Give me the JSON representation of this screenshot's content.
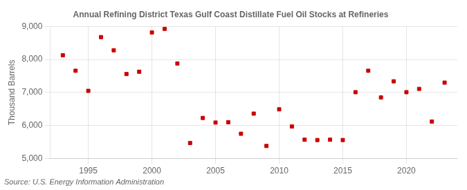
{
  "chart_data": {
    "type": "scatter",
    "title": "Annual Refining District Texas Gulf Coast Distillate Fuel Oil Stocks at Refineries",
    "ylabel": "Thousand Barrels",
    "annotations": [
      "Source: U.S. Energy Information Administration"
    ],
    "x": [
      1993,
      1994,
      1995,
      1996,
      1997,
      1998,
      1999,
      2000,
      2001,
      2002,
      2003,
      2004,
      2005,
      2006,
      2007,
      2008,
      2009,
      2010,
      2011,
      2012,
      2013,
      2014,
      2015,
      2016,
      2017,
      2018,
      2019,
      2020,
      2021,
      2022,
      2023
    ],
    "values": [
      8130,
      7660,
      7050,
      8680,
      8280,
      7560,
      7630,
      8820,
      8930,
      7880,
      5470,
      6230,
      6090,
      6100,
      5750,
      6360,
      5380,
      6490,
      5970,
      5570,
      5560,
      5570,
      5560,
      7010,
      7660,
      6850,
      7340,
      7010,
      7110,
      6120,
      7300
    ],
    "color": "#cc0000",
    "marker": "square",
    "xlim": [
      1992,
      2024
    ],
    "xticks": [
      1995,
      2000,
      2005,
      2010,
      2015,
      2020
    ],
    "ylim": [
      5000,
      9000
    ],
    "yticks": [
      {
        "value": 5000,
        "label": "5,000"
      },
      {
        "value": 6000,
        "label": "6,000"
      },
      {
        "value": 7000,
        "label": "7,000"
      },
      {
        "value": 8000,
        "label": "8,000"
      },
      {
        "value": 9000,
        "label": "9,000"
      }
    ],
    "grid": true
  }
}
